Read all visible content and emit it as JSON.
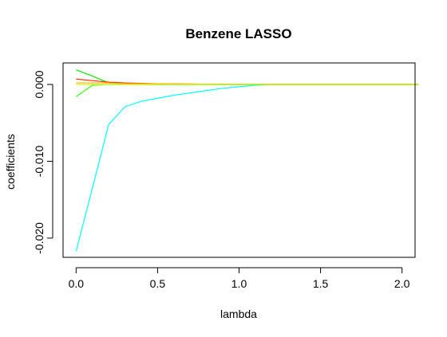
{
  "chart_data": {
    "type": "line",
    "title": "Benzene LASSO",
    "xlabel": "lambda",
    "ylabel": "coefficients",
    "xlim": [
      -0.08,
      2.08
    ],
    "ylim": [
      -0.0225,
      0.0028
    ],
    "x_ticks": [
      0.0,
      0.5,
      1.0,
      1.5,
      2.0
    ],
    "x_tick_labels": [
      "0.0",
      "0.5",
      "1.0",
      "1.5",
      "2.0"
    ],
    "y_ticks": [
      -0.02,
      -0.01,
      0.0
    ],
    "y_tick_labels": [
      "-0.020",
      "-0.010",
      "0.000"
    ],
    "grid": false,
    "series": [
      {
        "color": "#00ffff",
        "x": [
          0.0,
          0.1,
          0.2,
          0.3,
          0.4,
          0.5,
          0.6,
          0.7,
          0.8,
          0.9,
          1.0,
          1.1,
          1.2,
          1.5,
          2.1
        ],
        "y": [
          -0.0217,
          -0.0135,
          -0.0052,
          -0.0029,
          -0.0022,
          -0.0018,
          -0.0014,
          -0.0011,
          -0.0008,
          -0.0005,
          -0.0003,
          -0.0001,
          0.0,
          0.0,
          0.0
        ]
      },
      {
        "color": "#00ee00",
        "x": [
          0.0,
          0.1,
          0.2,
          0.3,
          0.5,
          1.0,
          1.5,
          2.1
        ],
        "y": [
          0.0019,
          0.0011,
          0.0002,
          0.0001,
          0.0,
          0.0,
          0.0,
          0.0
        ]
      },
      {
        "color": "#33ff00",
        "x": [
          0.0,
          0.1,
          0.2,
          0.3,
          0.5,
          1.0,
          1.5,
          2.1
        ],
        "y": [
          -0.0016,
          -0.0001,
          0.0,
          0.0,
          0.0,
          0.0,
          0.0,
          0.0
        ]
      },
      {
        "color": "#ff3300",
        "x": [
          0.0,
          0.1,
          0.2,
          0.3,
          0.5,
          1.0,
          1.5,
          2.1
        ],
        "y": [
          0.0007,
          0.0005,
          0.0003,
          0.0002,
          0.0001,
          0.0,
          0.0,
          0.0
        ]
      },
      {
        "color": "#ffaa00",
        "x": [
          0.0,
          0.1,
          0.2,
          0.3,
          0.5,
          1.0,
          1.5,
          2.1
        ],
        "y": [
          0.0002,
          0.0002,
          0.0002,
          0.0001,
          0.0001,
          0.0,
          0.0,
          0.0
        ]
      },
      {
        "color": "#ccff00",
        "x": [
          0.0,
          0.2,
          0.5,
          1.0,
          1.5,
          2.1
        ],
        "y": [
          0.0,
          0.0,
          0.0,
          0.0,
          0.0,
          0.0
        ]
      }
    ]
  }
}
